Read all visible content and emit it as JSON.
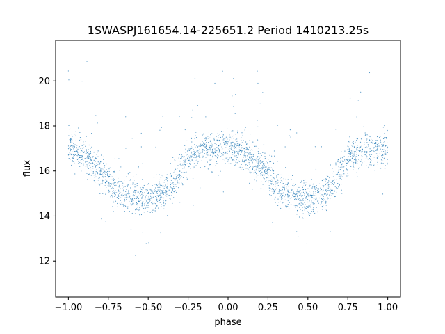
{
  "chart_data": {
    "type": "scatter",
    "title": "1SWASPJ161654.14-225651.2 Period 1410213.25s",
    "xlabel": "phase",
    "ylabel": "flux",
    "xlim": [
      -1.08,
      1.08
    ],
    "ylim": [
      10.4,
      21.8
    ],
    "xticks": [
      -1.0,
      -0.75,
      -0.5,
      -0.25,
      0.0,
      0.25,
      0.5,
      0.75,
      1.0
    ],
    "xtick_labels": [
      "−1.00",
      "−0.75",
      "−0.50",
      "−0.25",
      "0.00",
      "0.25",
      "0.50",
      "0.75",
      "1.00"
    ],
    "yticks": [
      12,
      14,
      16,
      18,
      20
    ],
    "ytick_labels": [
      "12",
      "14",
      "16",
      "18",
      "20"
    ],
    "grid": false,
    "marker_color": "#1f77b4",
    "series": [
      {
        "name": "",
        "description_points": "phase-folded light curve (approximate binned means)",
        "x": [
          -1.0,
          -0.95,
          -0.9,
          -0.85,
          -0.8,
          -0.75,
          -0.7,
          -0.65,
          -0.6,
          -0.55,
          -0.5,
          -0.45,
          -0.4,
          -0.35,
          -0.3,
          -0.25,
          -0.2,
          -0.15,
          -0.1,
          -0.05,
          0.0,
          0.05,
          0.1,
          0.15,
          0.2,
          0.25,
          0.3,
          0.35,
          0.4,
          0.45,
          0.5,
          0.55,
          0.6,
          0.65,
          0.7,
          0.75,
          0.8,
          0.85,
          0.9,
          0.95,
          1.0
        ],
        "y": [
          17.0,
          16.9,
          16.7,
          16.3,
          16.0,
          15.6,
          15.2,
          15.0,
          14.9,
          14.8,
          14.8,
          14.9,
          15.0,
          15.3,
          16.0,
          16.6,
          16.8,
          17.0,
          16.9,
          17.0,
          17.2,
          17.0,
          16.8,
          16.5,
          16.2,
          15.8,
          15.3,
          15.0,
          14.9,
          14.8,
          14.8,
          14.9,
          15.0,
          15.4,
          16.0,
          16.6,
          16.8,
          17.0,
          16.9,
          17.1,
          17.0
        ]
      }
    ]
  }
}
